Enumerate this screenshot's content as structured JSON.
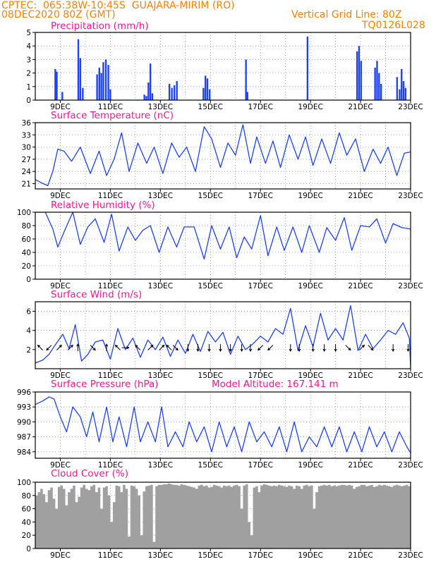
{
  "header": {
    "line1_left": "CPTEC:  065:38W-10:45S  GUAJARA-MIRIM (RO)",
    "line2_left": "08DEC2020 80Z (GMT)",
    "line2_right": "Vertical Grid Line: 80Z",
    "line3_right": "TQ0126L028"
  },
  "panels": {
    "precip_title": "Precipitation (mm/h)",
    "temp_title": "Surface Temperature (nC)",
    "rh_title": "Relative Humidity (%)",
    "wind_title": "Surface Wind (m/s)",
    "pres_title": "Surface Pressure (hPa)",
    "pres_note": "Model Altitude: 167.141 m",
    "cloud_title": "Cloud Cover (%)"
  },
  "colors": {
    "header": "#ff7f00",
    "title": "#ff1493",
    "series": "#1e40ff",
    "cloud": "#a0a0a0",
    "grid": "#9a9a9a"
  },
  "chart_data": [
    {
      "type": "bar",
      "title": "Precipitation (mm/h)",
      "x_ticks": [
        "9DEC",
        "11DEC",
        "13DEC",
        "15DEC",
        "17DEC",
        "19DEC",
        "21DEC",
        "23DEC"
      ],
      "x_tick_pos": [
        1,
        3,
        5,
        7,
        9,
        11,
        13,
        15
      ],
      "xlim": [
        0,
        15
      ],
      "ylim": [
        0,
        5
      ],
      "y_ticks": [
        0,
        1,
        2,
        3,
        4,
        5
      ],
      "grid": true,
      "events": [
        {
          "x": 0.8,
          "y": 2.3
        },
        {
          "x": 0.86,
          "y": 2.1
        },
        {
          "x": 1.08,
          "y": 0.6
        },
        {
          "x": 1.72,
          "y": 4.5
        },
        {
          "x": 1.8,
          "y": 3.1
        },
        {
          "x": 1.9,
          "y": 0.9
        },
        {
          "x": 2.47,
          "y": 1.9
        },
        {
          "x": 2.56,
          "y": 2.4
        },
        {
          "x": 2.64,
          "y": 2.0
        },
        {
          "x": 2.72,
          "y": 2.8
        },
        {
          "x": 2.82,
          "y": 3.0
        },
        {
          "x": 2.92,
          "y": 2.6
        },
        {
          "x": 3.0,
          "y": 0.8
        },
        {
          "x": 4.36,
          "y": 0.4
        },
        {
          "x": 4.44,
          "y": 0.3
        },
        {
          "x": 4.52,
          "y": 1.3
        },
        {
          "x": 4.6,
          "y": 2.7
        },
        {
          "x": 4.68,
          "y": 0.5
        },
        {
          "x": 5.36,
          "y": 1.2
        },
        {
          "x": 5.46,
          "y": 0.9
        },
        {
          "x": 5.56,
          "y": 1.1
        },
        {
          "x": 5.66,
          "y": 1.4
        },
        {
          "x": 6.72,
          "y": 0.9
        },
        {
          "x": 6.8,
          "y": 1.8
        },
        {
          "x": 6.88,
          "y": 1.6
        },
        {
          "x": 6.97,
          "y": 0.8
        },
        {
          "x": 8.42,
          "y": 3.0
        },
        {
          "x": 8.48,
          "y": 0.6
        },
        {
          "x": 10.88,
          "y": 4.7
        },
        {
          "x": 12.86,
          "y": 3.6
        },
        {
          "x": 12.94,
          "y": 4.0
        },
        {
          "x": 13.02,
          "y": 2.9
        },
        {
          "x": 13.58,
          "y": 2.4
        },
        {
          "x": 13.66,
          "y": 2.9
        },
        {
          "x": 13.74,
          "y": 2.0
        },
        {
          "x": 13.82,
          "y": 1.2
        },
        {
          "x": 14.46,
          "y": 1.7
        },
        {
          "x": 14.56,
          "y": 0.8
        },
        {
          "x": 14.64,
          "y": 2.3
        },
        {
          "x": 14.72,
          "y": 1.4
        },
        {
          "x": 14.8,
          "y": 0.9
        }
      ]
    },
    {
      "type": "line",
      "title": "Surface Temperature (nC)",
      "x_ticks": [
        "9DEC",
        "11DEC",
        "13DEC",
        "15DEC",
        "17DEC",
        "19DEC",
        "21DEC",
        "23DEC"
      ],
      "xlim": [
        0,
        15
      ],
      "ylim": [
        19.7,
        36
      ],
      "y_ticks": [
        21,
        24,
        27,
        30,
        33,
        36
      ],
      "grid": true,
      "x": [
        0,
        0.25,
        0.5,
        0.7,
        0.9,
        1.15,
        1.45,
        1.8,
        2.2,
        2.55,
        2.85,
        3.15,
        3.45,
        3.75,
        4.1,
        4.45,
        4.75,
        5.1,
        5.45,
        5.75,
        6.05,
        6.4,
        6.75,
        7.05,
        7.4,
        7.7,
        8.0,
        8.3,
        8.6,
        8.85,
        9.2,
        9.5,
        9.8,
        10.15,
        10.5,
        10.8,
        11.1,
        11.45,
        11.8,
        12.15,
        12.45,
        12.8,
        13.15,
        13.5,
        13.8,
        14.1,
        14.45,
        14.75,
        15.0
      ],
      "y": [
        22,
        21.2,
        20.5,
        24,
        29.5,
        29,
        26.5,
        30,
        23.5,
        29,
        23,
        27,
        33.5,
        24,
        31,
        26,
        30,
        23.5,
        31,
        27.5,
        30,
        24,
        35,
        32,
        25,
        31,
        28,
        35.5,
        26,
        32.5,
        26,
        31.5,
        25,
        33,
        27,
        32.5,
        25.5,
        32,
        26,
        33.5,
        28,
        32,
        24,
        29.5,
        26,
        30,
        23,
        28.5,
        28.8
      ]
    },
    {
      "type": "line",
      "title": "Relative Humidity (%)",
      "x_ticks": [
        "9DEC",
        "11DEC",
        "13DEC",
        "15DEC",
        "17DEC",
        "19DEC",
        "21DEC",
        "23DEC"
      ],
      "xlim": [
        0,
        15
      ],
      "ylim": [
        0,
        100
      ],
      "y_ticks": [
        0,
        20,
        40,
        60,
        80,
        100
      ],
      "grid": true,
      "x": [
        0,
        0.4,
        0.7,
        0.9,
        1.2,
        1.5,
        1.8,
        2.1,
        2.4,
        2.75,
        3.05,
        3.35,
        3.7,
        4.0,
        4.3,
        4.6,
        4.95,
        5.3,
        5.65,
        5.95,
        6.35,
        6.75,
        7.05,
        7.4,
        7.75,
        8.05,
        8.35,
        8.65,
        9.0,
        9.3,
        9.65,
        9.95,
        10.3,
        10.65,
        10.95,
        11.35,
        11.65,
        12.0,
        12.35,
        12.65,
        13.0,
        13.35,
        13.65,
        14.0,
        14.3,
        14.65,
        15.0
      ],
      "y": [
        100,
        100,
        75,
        48,
        75,
        100,
        52,
        78,
        90,
        55,
        97,
        42,
        78,
        58,
        73,
        80,
        40,
        78,
        48,
        78,
        78,
        30,
        80,
        45,
        78,
        32,
        63,
        45,
        95,
        35,
        78,
        43,
        78,
        40,
        80,
        40,
        77,
        58,
        92,
        43,
        80,
        78,
        90,
        54,
        83,
        77,
        75
      ]
    },
    {
      "type": "line",
      "title": "Surface Wind (m/s)",
      "x_ticks": [
        "9DEC",
        "11DEC",
        "13DEC",
        "15DEC",
        "17DEC",
        "19DEC",
        "21DEC",
        "23DEC"
      ],
      "xlim": [
        0,
        15
      ],
      "ylim": [
        0,
        7
      ],
      "y_ticks": [
        2,
        4,
        6
      ],
      "grid": true,
      "x": [
        0,
        0.3,
        0.55,
        0.8,
        1.1,
        1.35,
        1.6,
        1.85,
        2.1,
        2.4,
        2.7,
        3.0,
        3.3,
        3.6,
        3.9,
        4.2,
        4.5,
        4.8,
        5.1,
        5.4,
        5.7,
        6.0,
        6.3,
        6.6,
        6.9,
        7.2,
        7.5,
        7.8,
        8.1,
        8.4,
        8.7,
        9.0,
        9.3,
        9.6,
        9.9,
        10.2,
        10.5,
        10.8,
        11.1,
        11.4,
        11.7,
        12.0,
        12.3,
        12.6,
        12.9,
        13.2,
        13.5,
        13.8,
        14.1,
        14.4,
        14.7,
        14.95,
        15.0
      ],
      "y": [
        0.6,
        0.9,
        1.5,
        2.5,
        3.6,
        2.1,
        4.6,
        0.8,
        1.5,
        2.8,
        3.0,
        1.0,
        4.2,
        2.0,
        3.2,
        1.2,
        3.0,
        2.0,
        3.3,
        1.3,
        3.0,
        1.6,
        3.6,
        1.8,
        3.9,
        2.8,
        3.8,
        1.5,
        3.4,
        2.0,
        2.6,
        3.4,
        2.8,
        4.2,
        3.6,
        6.3,
        1.9,
        4.5,
        2.3,
        5.8,
        3.0,
        4.2,
        3.0,
        6.6,
        1.9,
        3.6,
        2.1,
        3.0,
        4.0,
        3.6,
        4.8,
        3.2,
        0.2
      ],
      "arrows": [
        {
          "x": 0.2,
          "d": "NW"
        },
        {
          "x": 0.55,
          "d": "SW"
        },
        {
          "x": 0.95,
          "d": "NE"
        },
        {
          "x": 1.4,
          "d": "NE"
        },
        {
          "x": 1.7,
          "d": "N"
        },
        {
          "x": 2.3,
          "d": "SE"
        },
        {
          "x": 2.85,
          "d": "N"
        },
        {
          "x": 3.3,
          "d": "NW"
        },
        {
          "x": 3.6,
          "d": "E"
        },
        {
          "x": 4.1,
          "d": "NW"
        },
        {
          "x": 4.6,
          "d": "NE"
        },
        {
          "x": 5.05,
          "d": "NE"
        },
        {
          "x": 5.35,
          "d": "NW"
        },
        {
          "x": 5.6,
          "d": "SE"
        },
        {
          "x": 6.1,
          "d": "S"
        },
        {
          "x": 6.5,
          "d": "S"
        },
        {
          "x": 6.95,
          "d": "S"
        },
        {
          "x": 7.4,
          "d": "S"
        },
        {
          "x": 7.8,
          "d": "S"
        },
        {
          "x": 8.25,
          "d": "S"
        },
        {
          "x": 8.6,
          "d": "S"
        },
        {
          "x": 9.0,
          "d": "SW"
        },
        {
          "x": 9.4,
          "d": "SW"
        },
        {
          "x": 10.2,
          "d": "S"
        },
        {
          "x": 10.55,
          "d": "S"
        },
        {
          "x": 11.1,
          "d": "S"
        },
        {
          "x": 11.55,
          "d": "S"
        },
        {
          "x": 12.0,
          "d": "S"
        },
        {
          "x": 12.5,
          "d": "SE"
        },
        {
          "x": 13.05,
          "d": "NE"
        },
        {
          "x": 13.4,
          "d": "SE"
        },
        {
          "x": 14.3,
          "d": "S"
        },
        {
          "x": 14.9,
          "d": "S"
        }
      ]
    },
    {
      "type": "line",
      "title": "Surface Pressure (hPa)",
      "x_ticks": [
        "9DEC",
        "11DEC",
        "13DEC",
        "15DEC",
        "17DEC",
        "19DEC",
        "21DEC",
        "23DEC"
      ],
      "xlim": [
        0,
        15
      ],
      "ylim": [
        982.7,
        996
      ],
      "y_ticks": [
        984,
        987,
        990,
        993,
        996
      ],
      "grid": true,
      "x": [
        0,
        0.3,
        0.55,
        0.75,
        1.0,
        1.25,
        1.5,
        1.8,
        2.05,
        2.3,
        2.55,
        2.85,
        3.1,
        3.35,
        3.65,
        3.95,
        4.2,
        4.5,
        4.8,
        5.05,
        5.3,
        5.6,
        5.9,
        6.15,
        6.45,
        6.75,
        7.05,
        7.35,
        7.65,
        7.95,
        8.25,
        8.55,
        8.85,
        9.15,
        9.45,
        9.75,
        10.05,
        10.35,
        10.65,
        10.95,
        11.25,
        11.55,
        11.85,
        12.15,
        12.45,
        12.75,
        13.05,
        13.35,
        13.65,
        13.95,
        14.25,
        14.55,
        14.85,
        15.0
      ],
      "y": [
        993.5,
        994.2,
        995,
        994.6,
        991,
        988,
        993,
        991,
        987,
        992,
        986,
        993,
        986,
        991,
        985,
        993,
        986,
        990,
        986,
        993,
        985,
        988,
        985,
        990,
        986,
        989,
        984,
        990,
        985,
        989,
        984,
        990,
        986,
        988,
        985,
        989,
        984,
        990,
        984,
        987,
        985,
        989,
        985,
        989,
        984,
        988,
        984,
        989,
        985,
        988,
        984,
        988,
        985,
        983.8
      ]
    },
    {
      "type": "area",
      "title": "Cloud Cover (%)",
      "x_ticks": [
        "9DEC",
        "11DEC",
        "13DEC",
        "15DEC",
        "17DEC",
        "19DEC",
        "21DEC",
        "23DEC"
      ],
      "xlim": [
        0,
        15
      ],
      "ylim": [
        0,
        100
      ],
      "y_ticks": [
        0,
        20,
        40,
        60,
        80,
        100
      ],
      "grid": true,
      "x": [
        0,
        0.1,
        0.2,
        0.3,
        0.4,
        0.5,
        0.6,
        0.7,
        0.8,
        0.9,
        1.0,
        1.1,
        1.2,
        1.3,
        1.4,
        1.5,
        1.6,
        1.7,
        1.8,
        1.9,
        2.0,
        2.1,
        2.2,
        2.3,
        2.4,
        2.5,
        2.6,
        2.7,
        2.8,
        2.9,
        3.0,
        3.1,
        3.2,
        3.3,
        3.4,
        3.5,
        3.6,
        3.7,
        3.8,
        3.9,
        4.0,
        4.1,
        4.2,
        4.3,
        4.4,
        4.5,
        4.6,
        4.7,
        4.8,
        4.9,
        5.0,
        5.1,
        5.2,
        5.3,
        5.4,
        5.5,
        5.6,
        5.7,
        5.8,
        5.9,
        6.0,
        6.1,
        6.2,
        6.3,
        6.4,
        6.5,
        6.6,
        6.7,
        6.8,
        6.9,
        7.0,
        7.1,
        7.2,
        7.3,
        7.4,
        7.5,
        7.6,
        7.7,
        7.8,
        7.9,
        8.0,
        8.1,
        8.2,
        8.3,
        8.4,
        8.5,
        8.6,
        8.7,
        8.8,
        8.9,
        9.0,
        9.1,
        9.2,
        9.3,
        9.4,
        9.5,
        9.6,
        9.7,
        9.8,
        9.9,
        10.0,
        10.1,
        10.2,
        10.3,
        10.4,
        10.5,
        10.6,
        10.7,
        10.8,
        10.9,
        11.0,
        11.1,
        11.2,
        11.3,
        11.4,
        11.5,
        11.6,
        11.7,
        11.8,
        11.9,
        12.0,
        12.1,
        12.2,
        12.3,
        12.4,
        12.5,
        12.6,
        12.7,
        12.8,
        12.9,
        13.0,
        13.1,
        13.2,
        13.3,
        13.4,
        13.5,
        13.6,
        13.7,
        13.8,
        13.9,
        14.0,
        14.1,
        14.2,
        14.3,
        14.4,
        14.5,
        14.6,
        14.7,
        14.8,
        14.9,
        15.0
      ],
      "y": [
        80,
        85,
        90,
        82,
        70,
        88,
        92,
        75,
        60,
        93,
        95,
        90,
        65,
        85,
        90,
        95,
        70,
        78,
        92,
        96,
        90,
        88,
        94,
        96,
        85,
        92,
        60,
        92,
        94,
        80,
        40,
        70,
        95,
        94,
        85,
        96,
        90,
        18,
        95,
        94,
        90,
        80,
        20,
        86,
        94,
        95,
        96,
        10,
        94,
        96,
        96,
        97,
        97,
        98,
        97,
        96,
        96,
        95,
        97,
        96,
        95,
        94,
        93,
        92,
        90,
        95,
        96,
        94,
        95,
        92,
        93,
        96,
        95,
        94,
        92,
        95,
        94,
        95,
        93,
        95,
        96,
        94,
        60,
        95,
        97,
        40,
        20,
        92,
        94,
        85,
        95,
        97,
        96,
        95,
        94,
        95,
        94,
        96,
        95,
        94,
        93,
        95,
        94,
        90,
        95,
        94,
        90,
        95,
        96,
        94,
        95,
        60,
        85,
        94,
        95,
        96,
        95,
        96,
        94,
        95,
        94,
        95,
        96,
        96,
        95,
        96,
        95,
        90,
        93,
        94,
        96,
        96,
        94,
        95,
        96,
        93,
        94,
        96,
        95,
        96,
        95,
        94,
        93,
        95,
        96,
        95,
        94,
        95,
        96,
        94,
        95
      ]
    }
  ]
}
